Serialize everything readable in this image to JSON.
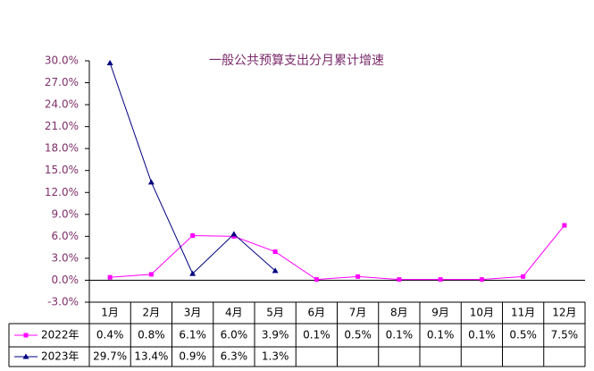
{
  "chart_data": {
    "type": "line",
    "title": "一般公共预算支出分月累计增速",
    "categories": [
      "1月",
      "2月",
      "3月",
      "4月",
      "5月",
      "6月",
      "7月",
      "8月",
      "9月",
      "10月",
      "11月",
      "12月"
    ],
    "series": [
      {
        "name": "2022年",
        "color": "#ff00ff",
        "values": [
          0.4,
          0.8,
          6.1,
          6.0,
          3.9,
          0.1,
          0.5,
          0.1,
          0.1,
          0.1,
          0.5,
          7.5
        ],
        "value_labels": [
          "0.4%",
          "0.8%",
          "6.1%",
          "6.0%",
          "3.9%",
          "0.1%",
          "0.5%",
          "0.1%",
          "0.1%",
          "0.1%",
          "0.5%",
          "7.5%"
        ]
      },
      {
        "name": "2023年",
        "color": "#000080",
        "values": [
          29.7,
          13.4,
          0.9,
          6.3,
          1.3,
          null,
          null,
          null,
          null,
          null,
          null,
          null
        ],
        "value_labels": [
          "29.7%",
          "13.4%",
          "0.9%",
          "6.3%",
          "1.3%",
          null,
          null,
          null,
          null,
          null,
          null,
          null
        ]
      }
    ],
    "ylim": [
      -3,
      30
    ],
    "yticks": [
      {
        "value": -3,
        "label": "-3.0%"
      },
      {
        "value": 0,
        "label": "0.0%"
      },
      {
        "value": 3,
        "label": "3.0%"
      },
      {
        "value": 6,
        "label": "6.0%"
      },
      {
        "value": 9,
        "label": "9.0%"
      },
      {
        "value": 12,
        "label": "12.0%"
      },
      {
        "value": 15,
        "label": "15.0%"
      },
      {
        "value": 18,
        "label": "18.0%"
      },
      {
        "value": 21,
        "label": "21.0%"
      },
      {
        "value": 24,
        "label": "24.0%"
      },
      {
        "value": 27,
        "label": "27.0%"
      },
      {
        "value": 30,
        "label": "30.0%"
      }
    ]
  }
}
